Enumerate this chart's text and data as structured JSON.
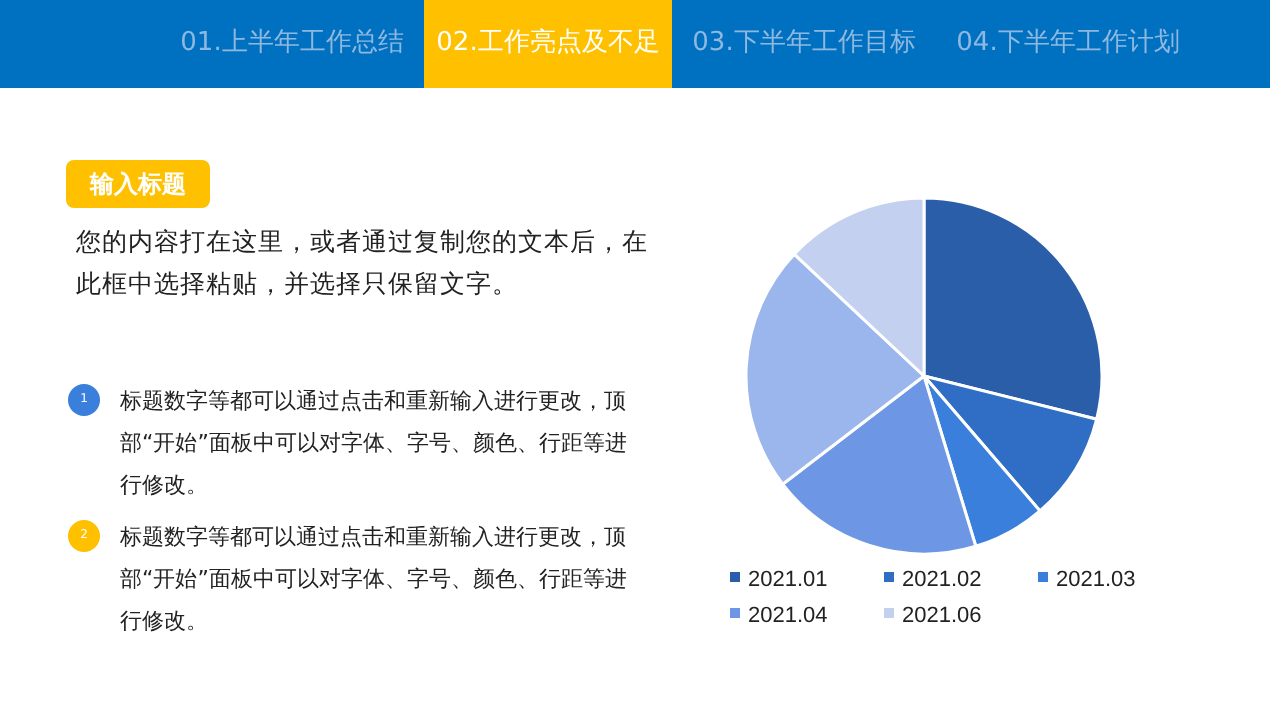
{
  "chart_data": [
    {
      "type": "other",
      "title": "输入标题",
      "annotations": [
        "01.上半年工作总结",
        "02.工作亮点及不足",
        "03.下半年工作目标",
        "04.下半年工作计划",
        "您的内容打在这里，或者通过复制您的文本后，在此框中选择粘贴，并选择只保留文字。",
        "1",
        "标题数字等都可以通过点击和重新输入进行更改，顶部“开始”面板中可以对字体、字号、颜色、行距等进行修改。",
        "2",
        "标题数字等都可以通过点击和重新输入进行更改，顶部“开始”面板中可以对字体、字号、颜色、行距等进行修改。"
      ]
    },
    {
      "type": "pie",
      "categories": [
        "2021.01",
        "2021.02",
        "2021.03",
        "2021.04",
        null,
        "2021.06"
      ],
      "values": [
        28.9,
        9.8,
        6.6,
        19.3,
        22.4,
        13.0
      ],
      "colors": [
        "#2a5ea8",
        "#2f6ec4",
        "#3a7fdc",
        "#6d97e4",
        "#9bb6ec",
        "#c3d0f0"
      ],
      "legend": "bottom"
    }
  ]
}
